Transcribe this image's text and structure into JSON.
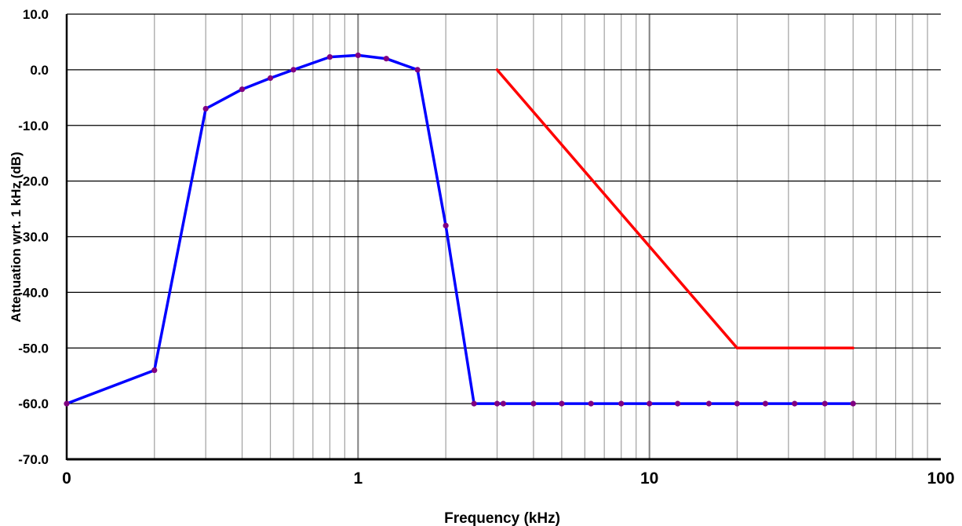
{
  "chart_data": {
    "type": "line",
    "title": "",
    "xlabel": "Frequency (kHz)",
    "ylabel": "Attenuation wrt. 1 kHz (dB)",
    "x_scale": "log",
    "xlim": [
      0.1,
      100
    ],
    "ylim": [
      -70,
      10
    ],
    "x_tick_labels": [
      "0",
      "1",
      "10",
      "100"
    ],
    "x_tick_values": [
      0.1,
      1,
      10,
      100
    ],
    "y_tick_labels": [
      "10.0",
      "0.0",
      "-10.0",
      "-20.0",
      "-30.0",
      "-40.0",
      "-50.0",
      "-60.0",
      "-70.0"
    ],
    "y_tick_values": [
      10,
      0,
      -10,
      -20,
      -30,
      -40,
      -50,
      -60,
      -70
    ],
    "grid": true,
    "series": [
      {
        "color": "#ff0000",
        "markers": false,
        "points": [
          [
            3,
            0
          ],
          [
            20,
            -50
          ],
          [
            50,
            -50
          ]
        ]
      },
      {
        "color": "#0000ff",
        "markers": true,
        "marker_color": "#800080",
        "points": [
          [
            0.1,
            -60
          ],
          [
            0.2,
            -54
          ],
          [
            0.3,
            -7
          ],
          [
            0.4,
            -3.5
          ],
          [
            0.5,
            -1.5
          ],
          [
            0.6,
            0
          ],
          [
            0.8,
            2.3
          ],
          [
            1,
            2.6
          ],
          [
            1.25,
            2
          ],
          [
            1.6,
            0
          ],
          [
            2,
            -28
          ],
          [
            2.5,
            -60
          ],
          [
            3,
            -60
          ],
          [
            3.15,
            -60
          ],
          [
            4,
            -60
          ],
          [
            5,
            -60
          ],
          [
            6.3,
            -60
          ],
          [
            8,
            -60
          ],
          [
            10,
            -60
          ],
          [
            12.5,
            -60
          ],
          [
            16,
            -60
          ],
          [
            20,
            -60
          ],
          [
            25,
            -60
          ],
          [
            31.5,
            -60
          ],
          [
            40,
            -60
          ],
          [
            50,
            -60
          ]
        ]
      }
    ]
  }
}
